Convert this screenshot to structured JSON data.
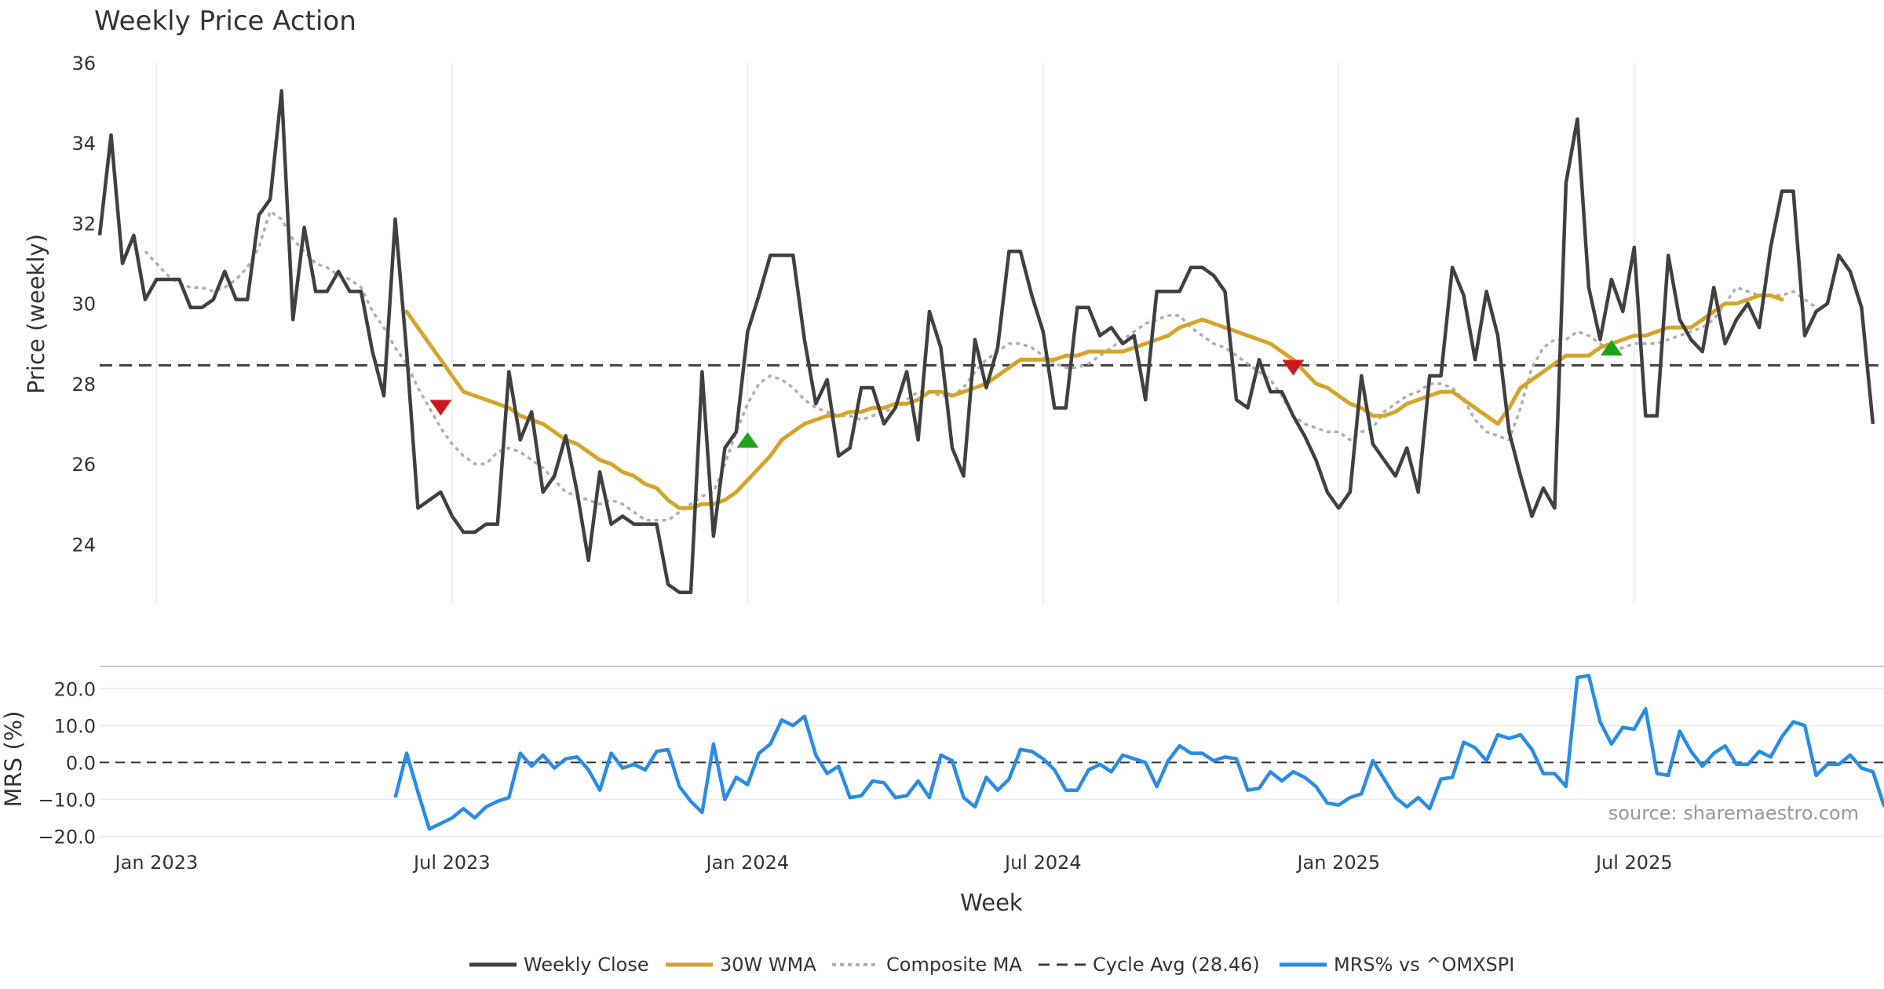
{
  "chart_data": {
    "type": "line",
    "title": "Weekly Price Action",
    "xlabel": "Week",
    "x_start_date": "2022-11-28",
    "x_ticks": [
      "Jan 2023",
      "Jul 2023",
      "Jan 2024",
      "Jul 2024",
      "Jan 2025",
      "Jul 2025"
    ],
    "x_tick_weeks": [
      5,
      31,
      57,
      83,
      109,
      135
    ],
    "price_panel": {
      "ylabel": "Price (weekly)",
      "ylim": [
        22.5,
        36
      ],
      "yticks": [
        "24",
        "26",
        "28",
        "30",
        "32",
        "34",
        "36"
      ],
      "grid": "x",
      "weekly_close": [
        31.7,
        34.2,
        31.0,
        31.7,
        30.1,
        30.6,
        30.6,
        30.6,
        29.9,
        29.9,
        30.1,
        30.8,
        30.1,
        30.1,
        32.2,
        32.6,
        35.3,
        29.6,
        31.9,
        30.3,
        30.3,
        30.8,
        30.3,
        30.3,
        28.8,
        27.7,
        32.1,
        28.8,
        24.9,
        25.1,
        25.3,
        24.7,
        24.3,
        24.3,
        24.5,
        24.5,
        28.3,
        26.6,
        27.3,
        25.3,
        25.7,
        26.7,
        25.3,
        23.6,
        25.8,
        24.5,
        24.7,
        24.5,
        24.5,
        24.5,
        23.0,
        22.8,
        22.8,
        28.3,
        24.2,
        26.4,
        26.8,
        29.3,
        30.2,
        31.2,
        31.2,
        31.2,
        29.1,
        27.5,
        28.1,
        26.2,
        26.4,
        27.9,
        27.9,
        27.0,
        27.4,
        28.3,
        26.6,
        29.8,
        28.9,
        26.4,
        25.7,
        29.1,
        27.9,
        28.9,
        31.3,
        31.3,
        30.2,
        29.3,
        27.4,
        27.4,
        29.9,
        29.9,
        29.2,
        29.4,
        29.0,
        29.2,
        27.6,
        30.3,
        30.3,
        30.3,
        30.9,
        30.9,
        30.7,
        30.3,
        27.6,
        27.4,
        28.6,
        27.8,
        27.8,
        27.2,
        26.7,
        26.1,
        25.3,
        24.9,
        25.3,
        28.2,
        26.5,
        26.1,
        25.7,
        26.4,
        25.3,
        28.2,
        28.2,
        30.9,
        30.2,
        28.6,
        30.3,
        29.2,
        26.8,
        25.7,
        24.7,
        25.4,
        24.9,
        33.0,
        34.6,
        30.4,
        29.1,
        30.6,
        29.8,
        31.4,
        27.2,
        27.2,
        31.2,
        29.6,
        29.1,
        28.8,
        30.4,
        29.0,
        29.6,
        30.0,
        29.4,
        31.4,
        32.8,
        32.8,
        29.2,
        29.8,
        30.0,
        31.2,
        30.8,
        29.9,
        27.0
      ],
      "wma_30w": [
        null,
        null,
        null,
        null,
        null,
        null,
        null,
        null,
        null,
        null,
        null,
        null,
        null,
        null,
        null,
        null,
        null,
        null,
        null,
        null,
        null,
        null,
        null,
        null,
        null,
        null,
        null,
        29.8,
        29.4,
        29.0,
        28.6,
        28.2,
        27.8,
        27.7,
        27.6,
        27.5,
        27.4,
        27.2,
        27.1,
        27.0,
        26.8,
        26.6,
        26.5,
        26.3,
        26.1,
        26.0,
        25.8,
        25.7,
        25.5,
        25.4,
        25.1,
        24.9,
        24.9,
        25.0,
        25.0,
        25.1,
        25.3,
        25.6,
        25.9,
        26.2,
        26.6,
        26.8,
        27.0,
        27.1,
        27.2,
        27.2,
        27.3,
        27.3,
        27.4,
        27.4,
        27.5,
        27.5,
        27.6,
        27.8,
        27.8,
        27.7,
        27.8,
        27.9,
        28.0,
        28.2,
        28.4,
        28.6,
        28.6,
        28.6,
        28.6,
        28.7,
        28.7,
        28.8,
        28.8,
        28.8,
        28.8,
        28.9,
        29.0,
        29.1,
        29.2,
        29.4,
        29.5,
        29.6,
        29.5,
        29.4,
        29.3,
        29.2,
        29.1,
        29.0,
        28.8,
        28.6,
        28.3,
        28.0,
        27.9,
        27.7,
        27.5,
        27.4,
        27.2,
        27.2,
        27.3,
        27.5,
        27.6,
        27.7,
        27.8,
        27.8,
        27.6,
        27.4,
        27.2,
        27.0,
        27.4,
        27.9,
        28.1,
        28.3,
        28.5,
        28.7,
        28.7,
        28.7,
        28.9,
        29.0,
        29.1,
        29.2,
        29.2,
        29.3,
        29.4,
        29.4,
        29.4,
        29.6,
        29.8,
        30.0,
        30.0,
        30.1,
        30.2,
        30.2,
        30.1
      ],
      "composite_ma": [
        null,
        null,
        null,
        null,
        31.3,
        31.0,
        30.7,
        30.5,
        30.4,
        30.4,
        30.3,
        30.4,
        30.6,
        30.9,
        31.4,
        32.3,
        32.1,
        31.6,
        31.3,
        31.0,
        30.9,
        30.7,
        30.6,
        30.4,
        29.8,
        29.4,
        28.9,
        28.5,
        27.9,
        27.4,
        26.9,
        26.5,
        26.2,
        26.0,
        26.0,
        26.3,
        26.4,
        26.3,
        26.1,
        25.9,
        25.6,
        25.3,
        25.2,
        25.1,
        25.0,
        25.1,
        25.0,
        24.8,
        24.6,
        24.6,
        24.6,
        24.8,
        25.0,
        25.2,
        25.3,
        26.0,
        26.8,
        27.5,
        28.0,
        28.2,
        28.1,
        27.9,
        27.6,
        27.4,
        27.3,
        27.2,
        27.2,
        27.1,
        27.2,
        27.3,
        27.4,
        27.6,
        27.8,
        27.8,
        27.7,
        27.7,
        27.9,
        28.3,
        28.6,
        28.8,
        29.0,
        29.0,
        28.9,
        28.7,
        28.5,
        28.4,
        28.4,
        28.5,
        28.7,
        28.9,
        29.1,
        29.3,
        29.5,
        29.6,
        29.7,
        29.7,
        29.4,
        29.2,
        29.0,
        28.9,
        28.7,
        28.5,
        28.3,
        28.1,
        27.7,
        27.2,
        27.0,
        26.9,
        26.8,
        26.8,
        26.6,
        26.8,
        26.9,
        27.3,
        27.5,
        27.7,
        27.8,
        28.0,
        28.0,
        27.9,
        27.6,
        27.1,
        26.8,
        26.7,
        26.6,
        27.4,
        28.4,
        28.9,
        29.1,
        29.1,
        29.3,
        29.2,
        29.0,
        28.8,
        28.9,
        29.0,
        29.0,
        29.0,
        29.1,
        29.2,
        29.3,
        29.4,
        29.6,
        30.0,
        30.4,
        30.3,
        30.2,
        30.2,
        30.2,
        30.3,
        30.1,
        29.9
      ],
      "cycle_avg": 28.46,
      "signals": [
        {
          "type": "sell",
          "week": 30,
          "price": 27.4
        },
        {
          "type": "buy",
          "week": 57,
          "price": 26.6
        },
        {
          "type": "sell",
          "week": 105,
          "price": 28.4
        },
        {
          "type": "buy",
          "week": 133,
          "price": 28.9
        }
      ]
    },
    "mrs_panel": {
      "ylabel": "MRS (%)",
      "ylim": [
        -22,
        26
      ],
      "yticks": [
        "20.0",
        "10.0",
        "0.0",
        "−10.0",
        "−20.0"
      ],
      "values": [
        null,
        null,
        null,
        null,
        null,
        null,
        null,
        null,
        null,
        null,
        null,
        null,
        null,
        null,
        null,
        null,
        null,
        null,
        null,
        null,
        null,
        null,
        null,
        null,
        null,
        null,
        -9.5,
        2.5,
        -8.0,
        -18.0,
        -16.5,
        -15.0,
        -12.5,
        -15.0,
        -12.0,
        -10.5,
        -9.5,
        2.5,
        -1.0,
        2.0,
        -1.5,
        1.0,
        1.5,
        -2.0,
        -7.5,
        2.5,
        -1.5,
        -0.5,
        -2.0,
        3.0,
        3.5,
        -6.5,
        -10.5,
        -13.5,
        5.0,
        -10.0,
        -4.0,
        -6.0,
        2.5,
        5.0,
        11.5,
        10.0,
        12.5,
        2.0,
        -3.0,
        -1.0,
        -9.5,
        -9.0,
        -5.0,
        -5.5,
        -9.5,
        -9.0,
        -5.0,
        -9.5,
        2.0,
        0.5,
        -9.5,
        -12.0,
        -4.0,
        -7.5,
        -4.5,
        3.5,
        3.0,
        1.0,
        -2.0,
        -7.5,
        -7.5,
        -2.0,
        -0.5,
        -2.5,
        2.0,
        1.0,
        0.0,
        -6.5,
        0.5,
        4.5,
        2.5,
        2.5,
        0.5,
        1.5,
        1.0,
        -7.5,
        -7.0,
        -2.5,
        -5.0,
        -2.5,
        -4.0,
        -6.5,
        -11.0,
        -11.5,
        -9.5,
        -8.5,
        0.5,
        -4.5,
        -9.5,
        -12.0,
        -9.5,
        -12.5,
        -4.5,
        -4.0,
        5.5,
        4.0,
        0.5,
        7.5,
        6.5,
        7.5,
        3.5,
        -3.0,
        -3.0,
        -6.5,
        23.0,
        23.5,
        11.0,
        5.0,
        9.5,
        9.0,
        14.5,
        -3.0,
        -3.5,
        8.5,
        3.0,
        -1.0,
        2.5,
        4.5,
        -0.5,
        -0.5,
        3.0,
        1.5,
        7.0,
        11.0,
        10.0,
        -3.5,
        -0.5,
        -0.5,
        2.0,
        -1.5,
        -2.5,
        -12.0
      ]
    },
    "legend": {
      "placement": "bottom-center",
      "items": [
        {
          "label": "Weekly Close",
          "color": "#404040",
          "style": "solid"
        },
        {
          "label": "30W WMA",
          "color": "#D4A52C",
          "style": "solid"
        },
        {
          "label": "Composite MA",
          "color": "#B0B0B0",
          "style": "dotted"
        },
        {
          "label": "Cycle Avg (28.46)",
          "color": "#404040",
          "style": "dashed"
        },
        {
          "label": "MRS% vs ^OMXSPI",
          "color": "#2B8CE3",
          "style": "solid"
        }
      ]
    },
    "source": "source: sharemaestro.com",
    "colors": {
      "close": "#404040",
      "wma": "#D4A52C",
      "composite": "#B0B0B0",
      "cycle": "#404040",
      "mrs": "#2B8CE3",
      "buy": "#1FA31F",
      "sell": "#D0191E",
      "grid": "#E8ECEF"
    }
  }
}
